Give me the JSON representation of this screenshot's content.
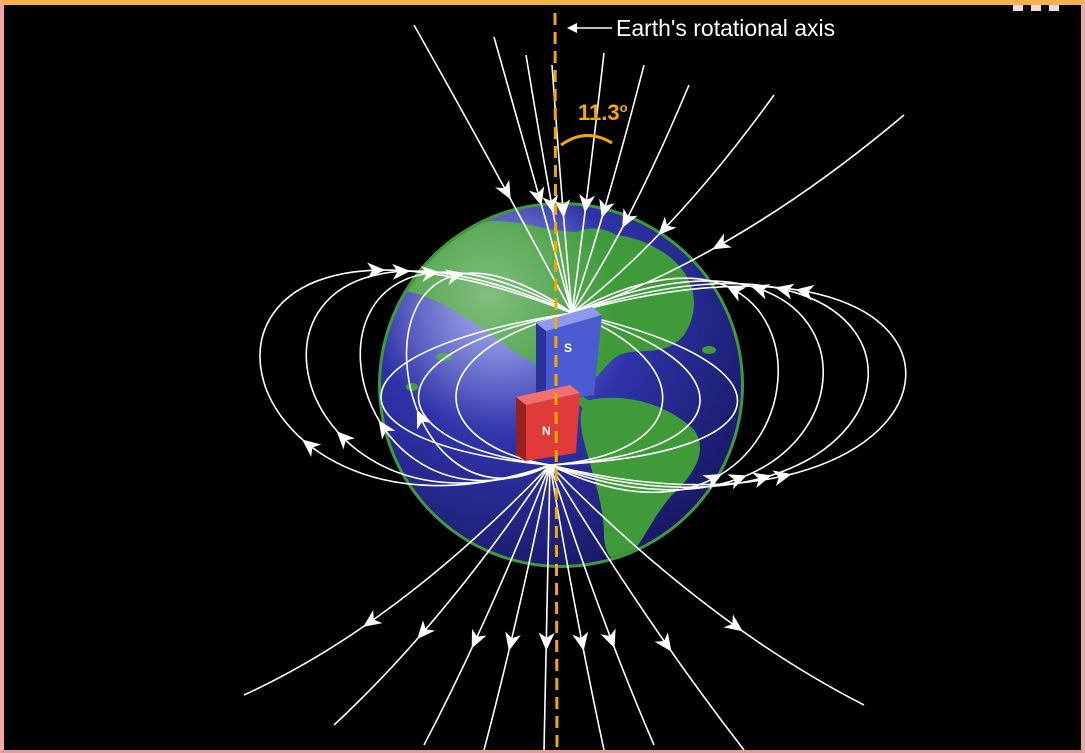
{
  "axis_label": "Earth's rotational axis",
  "angle": {
    "value": "11.3",
    "unit_symbol": "o"
  },
  "magnet": {
    "south_label": "S",
    "north_label": "N"
  },
  "colors": {
    "background": "#000000",
    "axis": "#f2a900",
    "ocean": "#2d2f9a",
    "land": "#3f9b3a",
    "magnet_south": "#4a5ad0",
    "magnet_north": "#e03a3a",
    "field_lines": "#ffffff"
  },
  "icons": [
    "globe-icon",
    "bar-magnet-icon",
    "field-arrow-icon"
  ]
}
